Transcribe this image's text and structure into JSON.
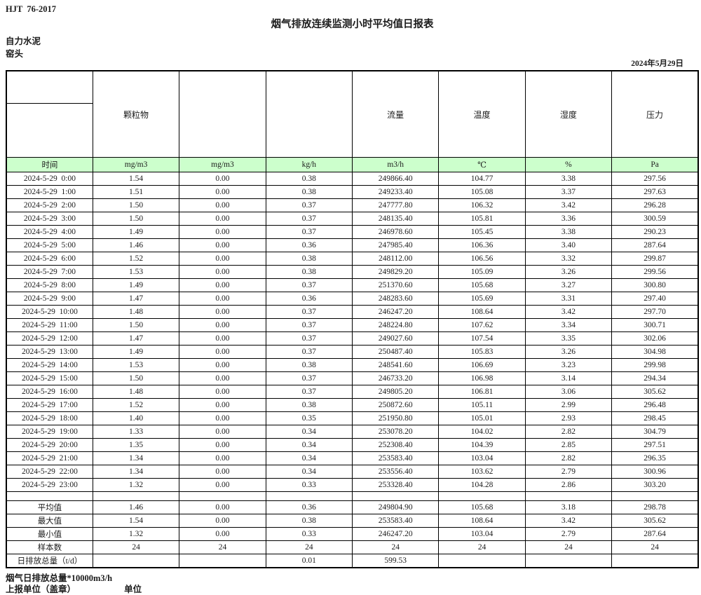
{
  "page": {
    "standard_code": "HJT  76-2017",
    "title": "烟气排放连续监测小时平均值日报表",
    "company": "自力水泥",
    "station": "窑头",
    "date": "2024年5月29日"
  },
  "table": {
    "header_bg": "#ccffcc",
    "group_headers": [
      "",
      "颗粒物",
      "",
      "",
      "流量",
      "温度",
      "湿度",
      "压力"
    ],
    "unit_headers": [
      "时间",
      "mg/m3",
      "mg/m3",
      "kg/h",
      "m3/h",
      "℃",
      "%",
      "Pa"
    ],
    "rows": [
      [
        "2024-5-29  0:00",
        "1.54",
        "0.00",
        "0.38",
        "249866.40",
        "104.77",
        "3.38",
        "297.56"
      ],
      [
        "2024-5-29  1:00",
        "1.51",
        "0.00",
        "0.38",
        "249233.40",
        "105.08",
        "3.37",
        "297.63"
      ],
      [
        "2024-5-29  2:00",
        "1.50",
        "0.00",
        "0.37",
        "247777.80",
        "106.32",
        "3.42",
        "296.28"
      ],
      [
        "2024-5-29  3:00",
        "1.50",
        "0.00",
        "0.37",
        "248135.40",
        "105.81",
        "3.36",
        "300.59"
      ],
      [
        "2024-5-29  4:00",
        "1.49",
        "0.00",
        "0.37",
        "246978.60",
        "105.45",
        "3.38",
        "290.23"
      ],
      [
        "2024-5-29  5:00",
        "1.46",
        "0.00",
        "0.36",
        "247985.40",
        "106.36",
        "3.40",
        "287.64"
      ],
      [
        "2024-5-29  6:00",
        "1.52",
        "0.00",
        "0.38",
        "248112.00",
        "106.56",
        "3.32",
        "299.87"
      ],
      [
        "2024-5-29  7:00",
        "1.53",
        "0.00",
        "0.38",
        "249829.20",
        "105.09",
        "3.26",
        "299.56"
      ],
      [
        "2024-5-29  8:00",
        "1.49",
        "0.00",
        "0.37",
        "251370.60",
        "105.68",
        "3.27",
        "300.80"
      ],
      [
        "2024-5-29  9:00",
        "1.47",
        "0.00",
        "0.36",
        "248283.60",
        "105.69",
        "3.31",
        "297.40"
      ],
      [
        "2024-5-29  10:00",
        "1.48",
        "0.00",
        "0.37",
        "246247.20",
        "108.64",
        "3.42",
        "297.70"
      ],
      [
        "2024-5-29  11:00",
        "1.50",
        "0.00",
        "0.37",
        "248224.80",
        "107.62",
        "3.34",
        "300.71"
      ],
      [
        "2024-5-29  12:00",
        "1.47",
        "0.00",
        "0.37",
        "249027.60",
        "107.54",
        "3.35",
        "302.06"
      ],
      [
        "2024-5-29  13:00",
        "1.49",
        "0.00",
        "0.37",
        "250487.40",
        "105.83",
        "3.26",
        "304.98"
      ],
      [
        "2024-5-29  14:00",
        "1.53",
        "0.00",
        "0.38",
        "248541.60",
        "106.69",
        "3.23",
        "299.98"
      ],
      [
        "2024-5-29  15:00",
        "1.50",
        "0.00",
        "0.37",
        "246733.20",
        "106.98",
        "3.14",
        "294.34"
      ],
      [
        "2024-5-29  16:00",
        "1.48",
        "0.00",
        "0.37",
        "249805.20",
        "106.81",
        "3.06",
        "305.62"
      ],
      [
        "2024-5-29  17:00",
        "1.52",
        "0.00",
        "0.38",
        "250872.60",
        "105.11",
        "2.99",
        "296.48"
      ],
      [
        "2024-5-29  18:00",
        "1.40",
        "0.00",
        "0.35",
        "251950.80",
        "105.01",
        "2.93",
        "298.45"
      ],
      [
        "2024-5-29  19:00",
        "1.33",
        "0.00",
        "0.34",
        "253078.20",
        "104.02",
        "2.82",
        "304.79"
      ],
      [
        "2024-5-29  20:00",
        "1.35",
        "0.00",
        "0.34",
        "252308.40",
        "104.39",
        "2.85",
        "297.51"
      ],
      [
        "2024-5-29  21:00",
        "1.34",
        "0.00",
        "0.34",
        "253583.40",
        "103.04",
        "2.82",
        "296.35"
      ],
      [
        "2024-5-29  22:00",
        "1.34",
        "0.00",
        "0.34",
        "253556.40",
        "103.62",
        "2.79",
        "300.96"
      ],
      [
        "2024-5-29  23:00",
        "1.32",
        "0.00",
        "0.33",
        "253328.40",
        "104.28",
        "2.86",
        "303.20"
      ]
    ],
    "spacer_row": [
      "",
      "",
      "",
      "",
      "",
      "",
      "",
      ""
    ],
    "summary_rows": [
      [
        "平均值",
        "1.46",
        "0.00",
        "0.36",
        "249804.90",
        "105.68",
        "3.18",
        "298.78"
      ],
      [
        "最大值",
        "1.54",
        "0.00",
        "0.38",
        "253583.40",
        "108.64",
        "3.42",
        "305.62"
      ],
      [
        "最小值",
        "1.32",
        "0.00",
        "0.33",
        "246247.20",
        "103.04",
        "2.79",
        "287.64"
      ],
      [
        "样本数",
        "24",
        "24",
        "24",
        "24",
        "24",
        "24",
        "24"
      ],
      [
        "日排放总量（t/d）",
        "",
        "",
        "0.01",
        "599.53",
        "",
        "",
        ""
      ]
    ]
  },
  "footer": {
    "note": "烟气日排放总量*10000m3/h",
    "report_unit_label": "上报单位（盖章）",
    "unit_label": "单位"
  }
}
